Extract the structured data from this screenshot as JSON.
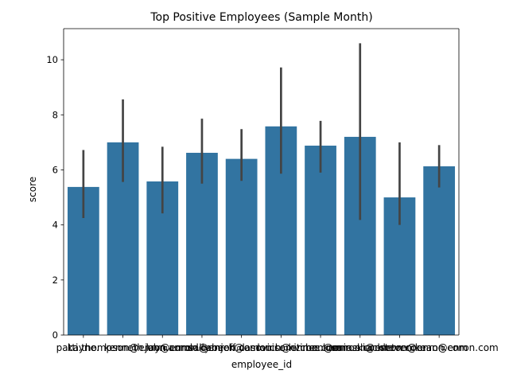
{
  "chart_data": {
    "type": "bar",
    "title": "Top Positive Employees (Sample Month)",
    "xlabel": "employee_id",
    "ylabel": "score",
    "ylim": [
      0,
      11.13
    ],
    "yticks": [
      0,
      2,
      4,
      6,
      8,
      10
    ],
    "bar_color": "#3274a1",
    "error_color": "#444444",
    "grid": false,
    "categories": [
      "kayne.",
      "patti.thompson@enron.com",
      "kenneth.lay@enron.com",
      "john.arnold@enron.com",
      "sally.beck@enron.com",
      "jeff.dasovich@enron.com",
      "louise.kitchen@enron.com",
      "vince.kaminski@enron.com",
      "sara.shackleton@enron.com",
      "steven.kean@enron.com"
    ],
    "values": [
      5.38,
      7.0,
      5.58,
      6.62,
      6.4,
      7.58,
      6.88,
      7.2,
      5.0,
      6.13
    ],
    "ci_low": [
      4.25,
      5.56,
      4.42,
      5.5,
      5.6,
      5.86,
      5.9,
      4.18,
      4.0,
      5.36
    ],
    "ci_high": [
      6.72,
      8.56,
      6.84,
      7.86,
      7.48,
      9.72,
      7.78,
      10.6,
      7.0,
      6.9
    ]
  }
}
